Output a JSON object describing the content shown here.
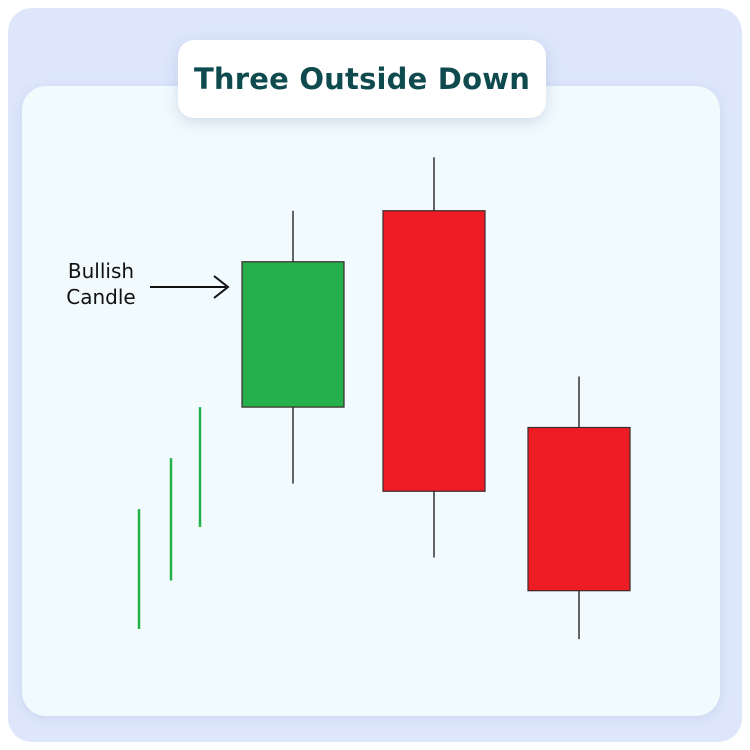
{
  "title": "Three Outside Down",
  "annotation": {
    "line1": "Bullish",
    "line2": "Candle"
  },
  "colors": {
    "bullish": "#26b04b",
    "bearish": "#ee1c25",
    "wick": "#333333",
    "title": "#0f4a4f"
  },
  "candles": [
    {
      "type": "bullish",
      "open": 2.9,
      "close": 5.75,
      "high": 6.75,
      "low": 1.4
    },
    {
      "type": "bearish",
      "open": 6.75,
      "close": 1.25,
      "high": 7.8,
      "low": -0.05
    },
    {
      "type": "bearish",
      "open": 2.5,
      "close": -0.7,
      "high": 3.5,
      "low": -1.65
    }
  ],
  "trend_lines": [
    {
      "top": 0.9,
      "bottom": -1.45
    },
    {
      "top": 1.9,
      "bottom": -0.5
    },
    {
      "top": 2.9,
      "bottom": 0.55
    }
  ]
}
